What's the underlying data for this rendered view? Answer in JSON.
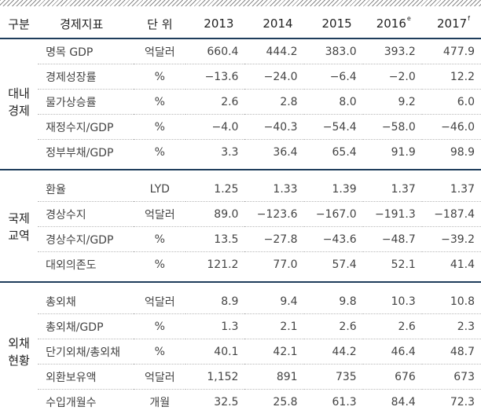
{
  "header": {
    "group": "구분",
    "indicator": "경제지표",
    "unit": "단 위",
    "years": [
      {
        "year": "2013",
        "sup": ""
      },
      {
        "year": "2014",
        "sup": ""
      },
      {
        "year": "2015",
        "sup": ""
      },
      {
        "year": "2016",
        "sup": "e"
      },
      {
        "year": "2017",
        "sup": "f"
      }
    ]
  },
  "groups": [
    {
      "label_lines": [
        "대내",
        "경제"
      ],
      "rows": [
        {
          "indicator": "명목 GDP",
          "unit": "억달러",
          "values": [
            "660.4",
            "444.2",
            "383.0",
            "393.2",
            "477.9"
          ]
        },
        {
          "indicator": "경제성장률",
          "unit": "%",
          "values": [
            "−13.6",
            "−24.0",
            "−6.4",
            "−2.0",
            "12.2"
          ]
        },
        {
          "indicator": "물가상승률",
          "unit": "%",
          "values": [
            "2.6",
            "2.8",
            "8.0",
            "9.2",
            "6.0"
          ]
        },
        {
          "indicator": "재정수지/GDP",
          "unit": "%",
          "values": [
            "−4.0",
            "−40.3",
            "−54.4",
            "−58.0",
            "−46.0"
          ]
        },
        {
          "indicator": "정부부채/GDP",
          "unit": "%",
          "values": [
            "3.3",
            "36.4",
            "65.4",
            "91.9",
            "98.9"
          ]
        }
      ]
    },
    {
      "label_lines": [
        "국제",
        "교역"
      ],
      "rows": [
        {
          "indicator": "환율",
          "unit": "LYD",
          "values": [
            "1.25",
            "1.33",
            "1.39",
            "1.37",
            "1.37"
          ]
        },
        {
          "indicator": "경상수지",
          "unit": "억달러",
          "values": [
            "89.0",
            "−123.6",
            "−167.0",
            "−191.3",
            "−187.4"
          ]
        },
        {
          "indicator": "경상수지/GDP",
          "unit": "%",
          "values": [
            "13.5",
            "−27.8",
            "−43.6",
            "−48.7",
            "−39.2"
          ]
        },
        {
          "indicator": "대외의존도",
          "unit": "%",
          "values": [
            "121.2",
            "77.0",
            "57.4",
            "52.1",
            "41.4"
          ]
        }
      ]
    },
    {
      "label_lines": [
        "외채",
        "현황"
      ],
      "rows": [
        {
          "indicator": "총외채",
          "unit": "억달러",
          "values": [
            "8.9",
            "9.4",
            "9.8",
            "10.3",
            "10.8"
          ]
        },
        {
          "indicator": "총외채/GDP",
          "unit": "%",
          "values": [
            "1.3",
            "2.1",
            "2.6",
            "2.6",
            "2.3"
          ]
        },
        {
          "indicator": "단기외채/총외채",
          "unit": "%",
          "values": [
            "40.1",
            "42.1",
            "44.2",
            "46.4",
            "48.7"
          ]
        },
        {
          "indicator": "외환보유액",
          "unit": "억달러",
          "values": [
            "1,152",
            "891",
            "735",
            "676",
            "673"
          ]
        },
        {
          "indicator": "수입개월수",
          "unit": "개월",
          "values": [
            "32.5",
            "25.8",
            "61.3",
            "84.4",
            "72.3"
          ]
        }
      ]
    }
  ]
}
